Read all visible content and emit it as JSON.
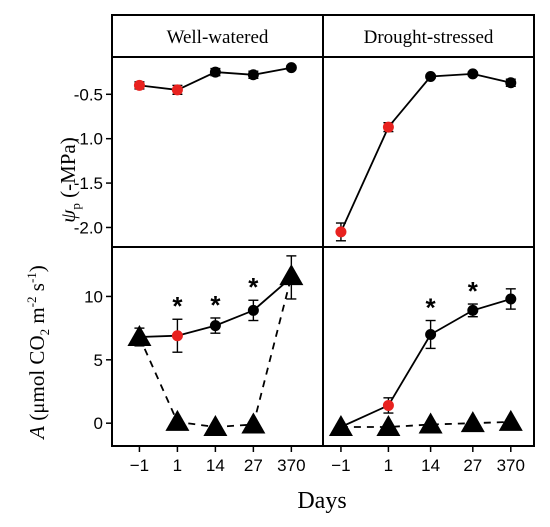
{
  "chart_data": {
    "type": "line",
    "x_categories": [
      "−1",
      "1",
      "14",
      "27",
      "370"
    ],
    "x_label": "Days",
    "panels": [
      {
        "row": "psi",
        "column": "Well-watered",
        "title": "Well-watered",
        "ylabel": "ψp (-MPa)",
        "yticks": [
          "-0.5",
          "-1.0",
          "-1.5",
          "-2.0"
        ],
        "ylim": [
          -2.22,
          -0.08
        ],
        "series": [
          {
            "marker": "circle",
            "x_pos": [
              0,
              1,
              2,
              3,
              4
            ],
            "values": [
              -0.4,
              -0.45,
              -0.25,
              -0.28,
              -0.2
            ],
            "errors": [
              0.04,
              0.05,
              0.04,
              0.04,
              0.02
            ],
            "point_colors": [
              "#e8221f",
              "#e8221f",
              "#000000",
              "#000000",
              "#000000"
            ]
          }
        ]
      },
      {
        "row": "psi",
        "column": "Drought-stressed",
        "title": "Drought-stressed",
        "yticks": [
          "-0.5",
          "-1.0",
          "-1.5",
          "-2.0"
        ],
        "ylim": [
          -2.22,
          -0.08
        ],
        "series": [
          {
            "marker": "circle",
            "x_pos": [
              0,
              1,
              2,
              3,
              4
            ],
            "values": [
              -2.05,
              -0.87,
              -0.3,
              -0.27,
              -0.37
            ],
            "errors": [
              0.1,
              0.05,
              0.02,
              0.02,
              0.04
            ],
            "point_colors": [
              "#e8221f",
              "#e8221f",
              "#000000",
              "#000000",
              "#000000"
            ]
          }
        ]
      },
      {
        "row": "A",
        "column": "Well-watered",
        "ylabel": "A (μmol CO2 m-2 s-1)",
        "yticks": [
          "0",
          "5",
          "10"
        ],
        "ylim": [
          -1.8,
          13.9
        ],
        "series": [
          {
            "marker": "circle",
            "line": "solid",
            "x_pos": [
              0,
              1,
              2,
              3,
              4
            ],
            "values": [
              6.8,
              6.9,
              7.7,
              8.9,
              11.5
            ],
            "errors": [
              0.7,
              1.3,
              0.6,
              0.8,
              1.7
            ],
            "point_colors": [
              "#e8221f",
              "#e8221f",
              "#000000",
              "#000000",
              "#000000"
            ]
          },
          {
            "marker": "triangle",
            "line": "dashed",
            "x_pos": [
              0,
              1,
              2,
              3,
              4
            ],
            "values": [
              6.8,
              0.1,
              -0.3,
              -0.1,
              11.6
            ]
          }
        ],
        "significance": [
          1,
          2,
          3
        ]
      },
      {
        "row": "A",
        "column": "Drought-stressed",
        "yticks": [
          "0",
          "5",
          "10"
        ],
        "ylim": [
          -1.8,
          13.9
        ],
        "series": [
          {
            "marker": "circle",
            "line": "solid",
            "x_pos": [
              0,
              1,
              2,
              3,
              4
            ],
            "values": [
              -0.3,
              1.4,
              7.0,
              8.9,
              9.8
            ],
            "errors": [
              0.2,
              0.6,
              1.1,
              0.5,
              0.8
            ],
            "point_colors": [
              "#e8221f",
              "#e8221f",
              "#000000",
              "#000000",
              "#000000"
            ]
          },
          {
            "marker": "triangle",
            "line": "dashed",
            "x_pos": [
              0,
              1,
              2,
              3,
              4
            ],
            "values": [
              -0.3,
              -0.3,
              -0.1,
              0.0,
              0.1
            ]
          }
        ],
        "significance": [
          2,
          3
        ]
      }
    ]
  }
}
